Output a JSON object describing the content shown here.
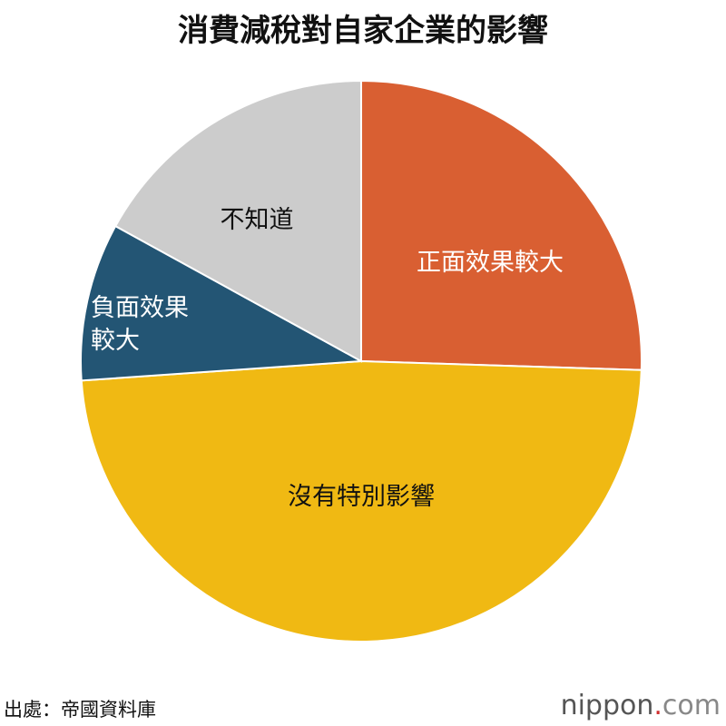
{
  "chart_data": {
    "type": "pie",
    "title": "消費減稅對自家企業的影響",
    "categories": [
      "正面效果較大",
      "沒有特別影響",
      "負面效果較大",
      "不知道"
    ],
    "values": [
      25.5,
      48.4,
      9.1,
      17.0
    ],
    "colors": [
      "#d95f32",
      "#f0b913",
      "#235574",
      "#cccccc"
    ],
    "label_colors": [
      "#ffffff",
      "#111111",
      "#ffffff",
      "#111111"
    ],
    "source": "出處：帝國資料庫",
    "logo": [
      "nippon",
      ".",
      "com"
    ]
  }
}
